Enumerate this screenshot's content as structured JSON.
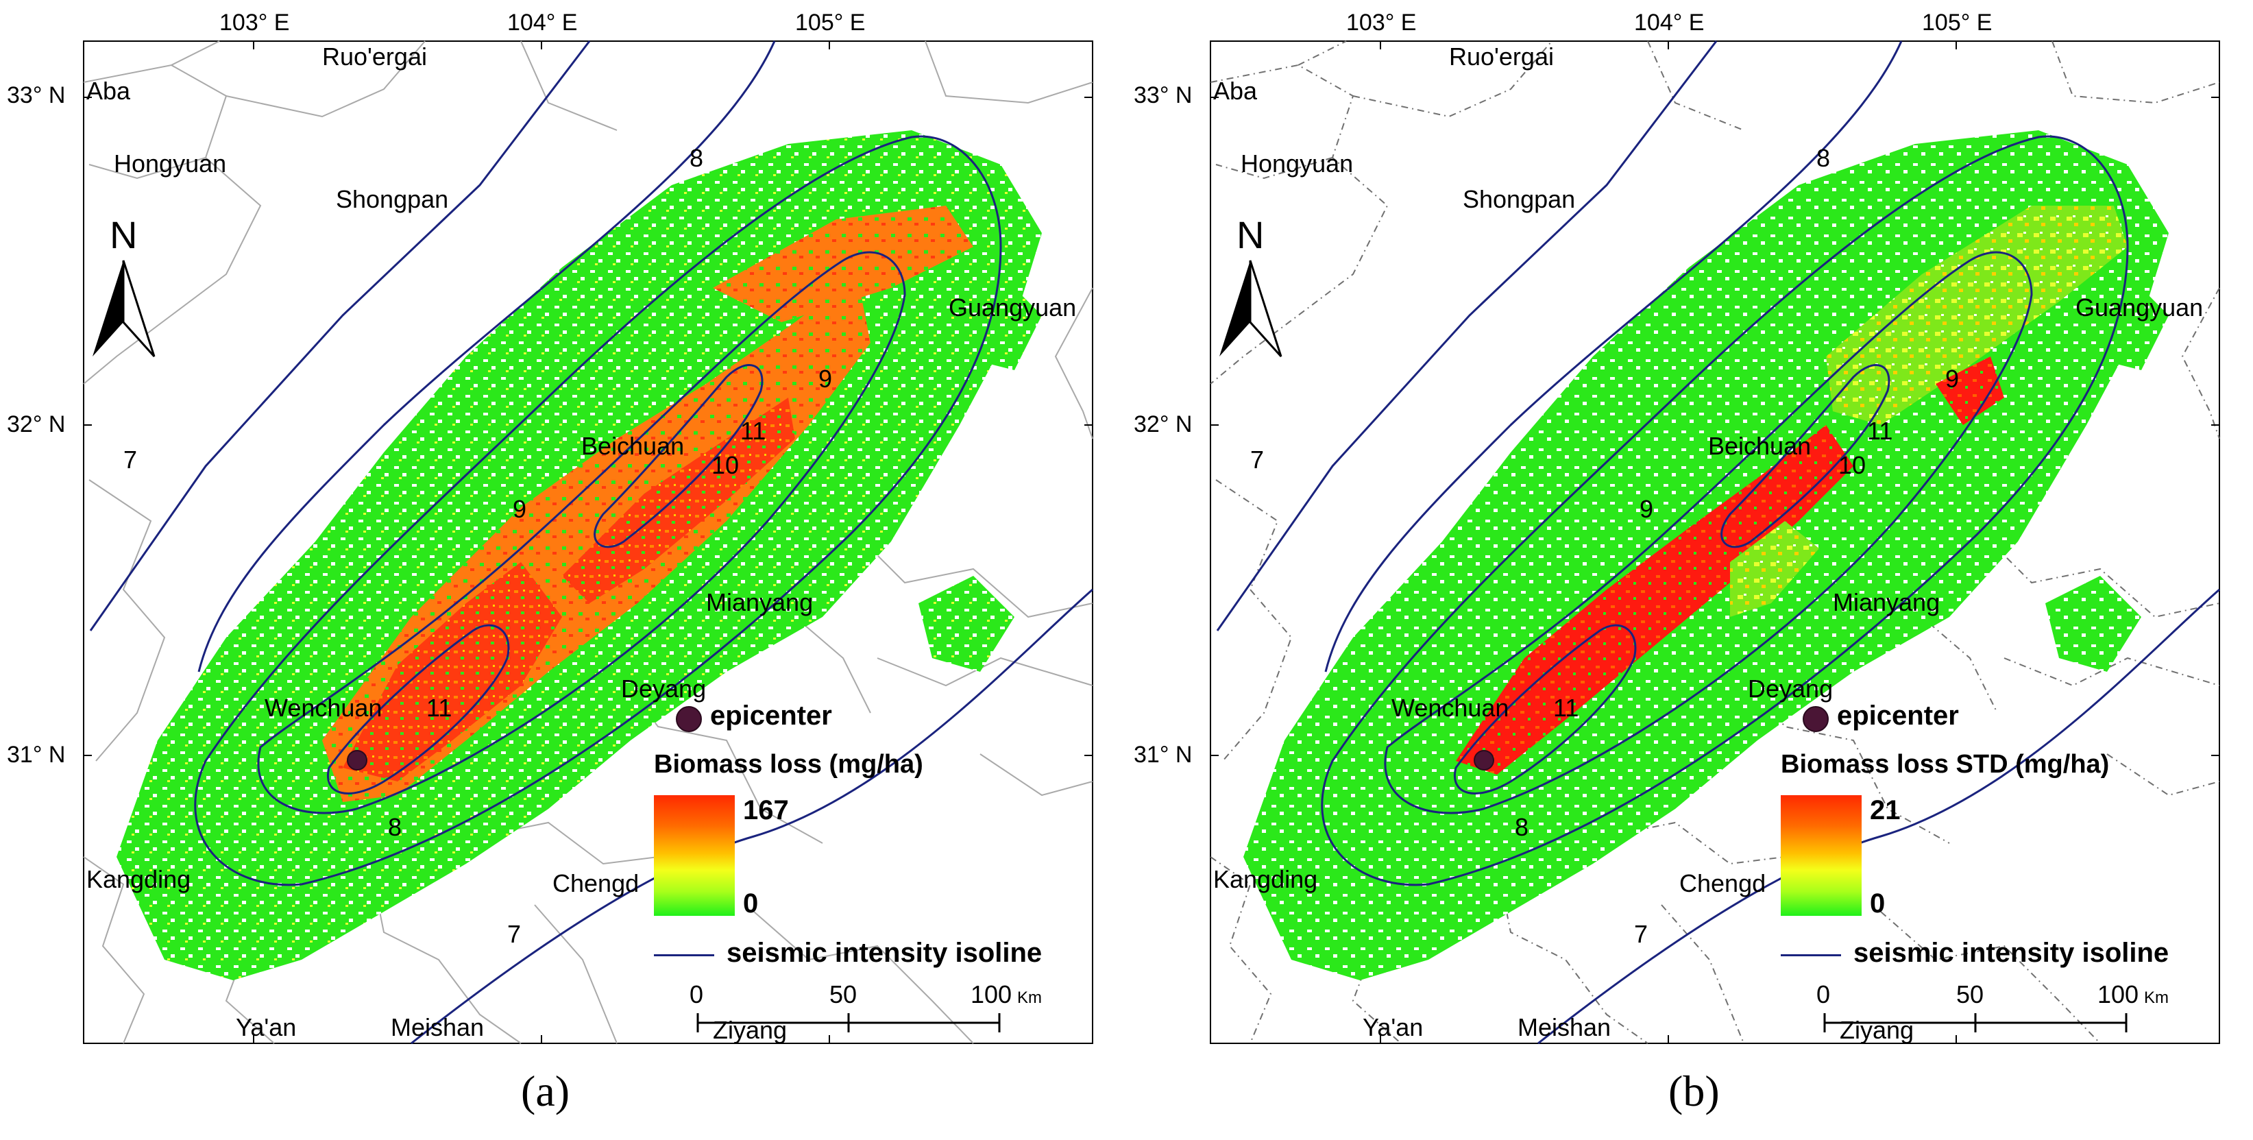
{
  "panels": [
    {
      "id": "a",
      "caption": "(a)",
      "legend_title": "Biomass loss (mg/ha)",
      "legend_max": "167",
      "legend_min": "0",
      "color_ramp": [
        "#20f01a",
        "#f4ff1a",
        "#ff2a00"
      ]
    },
    {
      "id": "b",
      "caption": "(b)",
      "legend_title": "Biomass loss STD (mg/ha)",
      "legend_max": "21",
      "legend_min": "0",
      "color_ramp": [
        "#20f01a",
        "#f4ff1a",
        "#ff2a00"
      ]
    }
  ],
  "longitude_labels": [
    "103° E",
    "104° E",
    "105° E"
  ],
  "latitude_labels": [
    "33° N",
    "32° N",
    "31° N"
  ],
  "places": {
    "ruoergai": "Ruo'ergai",
    "aba": "Aba",
    "hongyuan": "Hongyuan",
    "shongpan": "Shongpan",
    "guangyuan": "Guangyuan",
    "beichuan": "Beichuan",
    "mianyang": "Mianyang",
    "deyang": "Deyang",
    "wenchuan": "Wenchuan",
    "kangding": "Kangding",
    "chengdu": "Chengd",
    "yaan": "Ya'an",
    "meishan": "Meishan",
    "ziyang": "Ziyang"
  },
  "north_label": "N",
  "epicenter_label": "epicenter",
  "isoline_label": "seismic intensity isoline",
  "isoline_values": [
    "7",
    "8",
    "9",
    "10",
    "11"
  ],
  "scale_bar": {
    "ticks": [
      "0",
      "50",
      "100"
    ],
    "unit": "Km"
  },
  "colors": {
    "isoline": "#1a237e",
    "boundary": "#a9a9a9",
    "epicenter": "#4a1535",
    "low": "#20f01a",
    "high": "#ff2a00"
  }
}
